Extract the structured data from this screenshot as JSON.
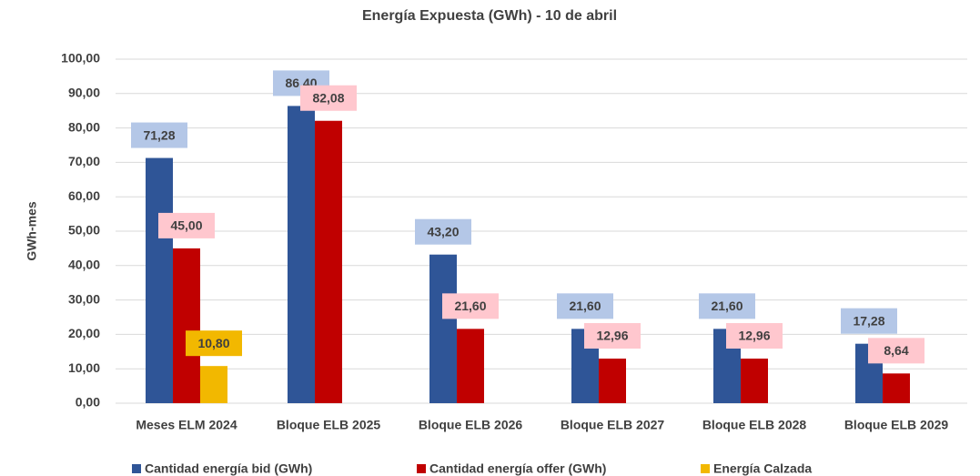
{
  "chart_data": {
    "type": "bar",
    "title": "Energía Expuesta (GWh) - 10 de abril",
    "y_label": "GWh-mes",
    "categories": [
      "Meses ELM 2024",
      "Bloque ELB 2025",
      "Bloque ELB 2026",
      "Bloque ELB 2027",
      "Bloque ELB 2028",
      "Bloque ELB 2029"
    ],
    "series": [
      {
        "name": "Cantidad energía bid (GWh)",
        "color": "#2f5597",
        "label_color": "#b4c7e7",
        "values": [
          71.28,
          86.4,
          43.2,
          21.6,
          21.6,
          17.28
        ],
        "value_labels": [
          "71,28",
          "86,40",
          "43,20",
          "21,60",
          "21,60",
          "17,28"
        ]
      },
      {
        "name": "Cantidad energía offer (GWh)",
        "color": "#c00000",
        "label_color": "#ffc7ce",
        "values": [
          45,
          82.08,
          21.6,
          12.96,
          12.96,
          8.64
        ],
        "value_labels": [
          "45,00",
          "82,08",
          "21,60",
          "12,96",
          "12,96",
          "8,64"
        ]
      },
      {
        "name": "Energía Calzada",
        "color": "#f2b800",
        "label_color": "#f2b800",
        "values": [
          10.8,
          null,
          null,
          null,
          null,
          null
        ],
        "value_labels": [
          "10,80",
          null,
          null,
          null,
          null,
          null
        ]
      }
    ],
    "ylim": [
      0,
      100
    ],
    "yticks": [
      {
        "value": 0,
        "label": "0,00"
      },
      {
        "value": 10,
        "label": "10,00"
      },
      {
        "value": 20,
        "label": "20,00"
      },
      {
        "value": 30,
        "label": "30,00"
      },
      {
        "value": 40,
        "label": "40,00"
      },
      {
        "value": 50,
        "label": "50,00"
      },
      {
        "value": 60,
        "label": "60,00"
      },
      {
        "value": 70,
        "label": "70,00"
      },
      {
        "value": 80,
        "label": "80,00"
      },
      {
        "value": 90,
        "label": "90,00"
      },
      {
        "value": 100,
        "label": "100,00"
      }
    ],
    "grid": true,
    "legend": "bottom"
  }
}
